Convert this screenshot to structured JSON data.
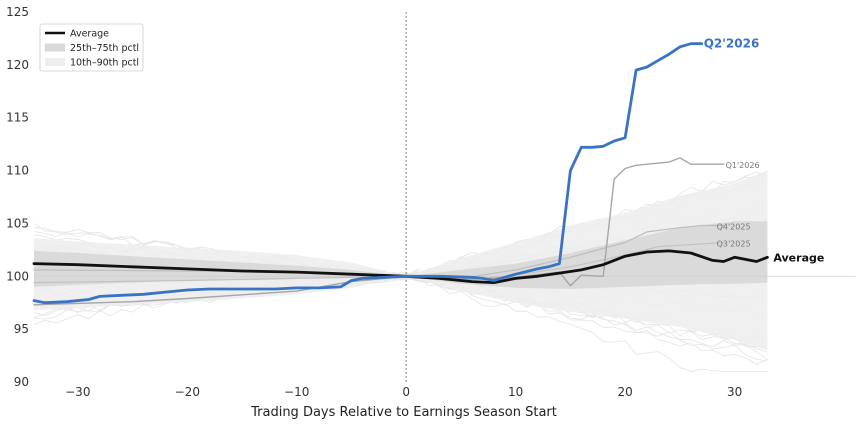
{
  "chart_data": {
    "type": "line",
    "title": "",
    "xlabel": "Trading Days Relative to Earnings Season Start",
    "ylabel": "",
    "xlim": [
      -34,
      41
    ],
    "ylim": [
      90,
      125
    ],
    "x_ticks": [
      -30,
      -20,
      -10,
      0,
      10,
      20,
      30
    ],
    "y_ticks": [
      90,
      95,
      100,
      105,
      110,
      115,
      120,
      125
    ],
    "grid": false,
    "legend_position": "top-left",
    "legend": [
      {
        "label": "Average",
        "kind": "line",
        "color": "#111111"
      },
      {
        "label": "25th–75th pctl",
        "kind": "band",
        "color": "#d9d9d9"
      },
      {
        "label": "10th–90th pctl",
        "kind": "band",
        "color": "#eeeeee"
      }
    ],
    "bands": [
      {
        "name": "10th–90th pctl",
        "color": "#ededed",
        "x": [
          -34,
          -30,
          -25,
          -20,
          -15,
          -10,
          -5,
          0,
          5,
          10,
          15,
          20,
          25,
          30,
          33
        ],
        "lower": [
          96.8,
          97.0,
          97.3,
          97.6,
          97.9,
          98.3,
          98.9,
          100.0,
          98.6,
          97.5,
          96.6,
          96.0,
          95.2,
          94.0,
          93.0
        ],
        "upper": [
          103.6,
          103.3,
          103.0,
          102.7,
          102.4,
          102.0,
          101.3,
          100.0,
          101.7,
          103.2,
          104.8,
          106.0,
          107.6,
          108.8,
          110.0
        ]
      },
      {
        "name": "25th–75th pctl",
        "color": "#d6d6d6",
        "x": [
          -34,
          -30,
          -25,
          -20,
          -15,
          -10,
          -5,
          0,
          5,
          10,
          15,
          20,
          25,
          30,
          33
        ],
        "lower": [
          99.0,
          99.2,
          99.4,
          99.6,
          99.7,
          99.8,
          99.9,
          100.0,
          99.3,
          98.9,
          98.8,
          99.0,
          99.2,
          99.3,
          99.4
        ],
        "upper": [
          102.4,
          102.2,
          101.9,
          101.6,
          101.3,
          101.0,
          100.6,
          100.0,
          100.6,
          101.2,
          102.2,
          103.4,
          104.6,
          105.2,
          105.2
        ]
      }
    ],
    "series": [
      {
        "name": "Average",
        "color": "#111111",
        "width": 2.8,
        "x": [
          -34,
          -30,
          -25,
          -20,
          -15,
          -10,
          -5,
          0,
          3,
          6,
          8,
          10,
          12,
          14,
          16,
          18,
          20,
          22,
          24,
          26,
          28,
          29,
          30,
          31,
          32,
          33
        ],
        "values": [
          101.2,
          101.1,
          100.9,
          100.7,
          100.5,
          100.4,
          100.2,
          100.0,
          99.8,
          99.5,
          99.4,
          99.8,
          100.0,
          100.3,
          100.6,
          101.1,
          101.9,
          102.3,
          102.4,
          102.2,
          101.5,
          101.4,
          101.8,
          101.6,
          101.4,
          101.8
        ]
      },
      {
        "name": "Q2'2026",
        "color": "#3b73c4",
        "width": 2.8,
        "label_color": "#3b73c4",
        "label_size": 12,
        "label_weight": "bold",
        "x": [
          -34,
          -33,
          -31,
          -29,
          -28,
          -26,
          -24,
          -22,
          -20,
          -18,
          -16,
          -14,
          -12,
          -10,
          -8,
          -6,
          -5,
          -4,
          -2,
          0,
          3,
          6,
          7,
          8,
          9,
          10,
          12,
          13,
          14,
          15,
          16,
          17,
          18,
          19,
          20,
          21,
          22,
          23,
          24,
          25,
          26,
          27
        ],
        "values": [
          97.7,
          97.5,
          97.6,
          97.8,
          98.1,
          98.2,
          98.3,
          98.5,
          98.7,
          98.8,
          98.8,
          98.8,
          98.8,
          98.9,
          98.9,
          99.0,
          99.6,
          99.8,
          99.9,
          100.0,
          100.0,
          99.9,
          99.8,
          99.6,
          99.9,
          100.2,
          100.7,
          100.9,
          101.2,
          110.0,
          112.2,
          112.2,
          112.3,
          112.8,
          113.1,
          119.5,
          119.8,
          120.4,
          121.0,
          121.7,
          122.0,
          122.0
        ]
      },
      {
        "name": "Q1'2026",
        "color": "#a6a6a6",
        "width": 1.4,
        "label_color": "#777777",
        "label_size": 8,
        "label_weight": "normal",
        "x": [
          -34,
          -25,
          -20,
          -10,
          -5,
          0,
          5,
          10,
          14,
          15,
          16,
          18,
          19,
          20,
          21,
          22,
          24,
          25,
          26,
          28,
          29
        ],
        "values": [
          97.3,
          97.6,
          97.9,
          98.6,
          99.5,
          100.0,
          99.7,
          99.9,
          100.4,
          99.1,
          100.1,
          100.0,
          109.2,
          110.2,
          110.5,
          110.6,
          110.8,
          111.2,
          110.6,
          110.6,
          110.6
        ]
      },
      {
        "name": "Q4'2025",
        "color": "#bdbdbd",
        "width": 1.2,
        "label_color": "#777777",
        "label_size": 8,
        "label_weight": "normal",
        "x": [
          -34,
          -20,
          -10,
          0,
          5,
          10,
          15,
          20,
          22,
          25,
          27,
          29
        ],
        "values": [
          100.6,
          100.5,
          100.4,
          100.0,
          99.8,
          100.6,
          101.8,
          103.2,
          104.2,
          104.6,
          104.8,
          104.8
        ]
      },
      {
        "name": "Q3'2025",
        "color": "#c2c2c2",
        "width": 1.2,
        "label_color": "#777777",
        "label_size": 8,
        "label_weight": "normal",
        "x": [
          -34,
          -20,
          -10,
          0,
          5,
          10,
          15,
          20,
          23,
          26,
          29
        ],
        "values": [
          99.4,
          99.6,
          99.8,
          100.0,
          99.6,
          100.1,
          100.9,
          102.0,
          102.8,
          103.0,
          103.2
        ]
      }
    ],
    "labels": {
      "average": "Average",
      "q2_2026": "Q2'2026",
      "q1_2026": "Q1'2026",
      "q4_2025": "Q4'2025",
      "q3_2025": "Q3'2025"
    },
    "reference_lines": {
      "vertical_x": 0,
      "horizontal_y": 100
    }
  }
}
